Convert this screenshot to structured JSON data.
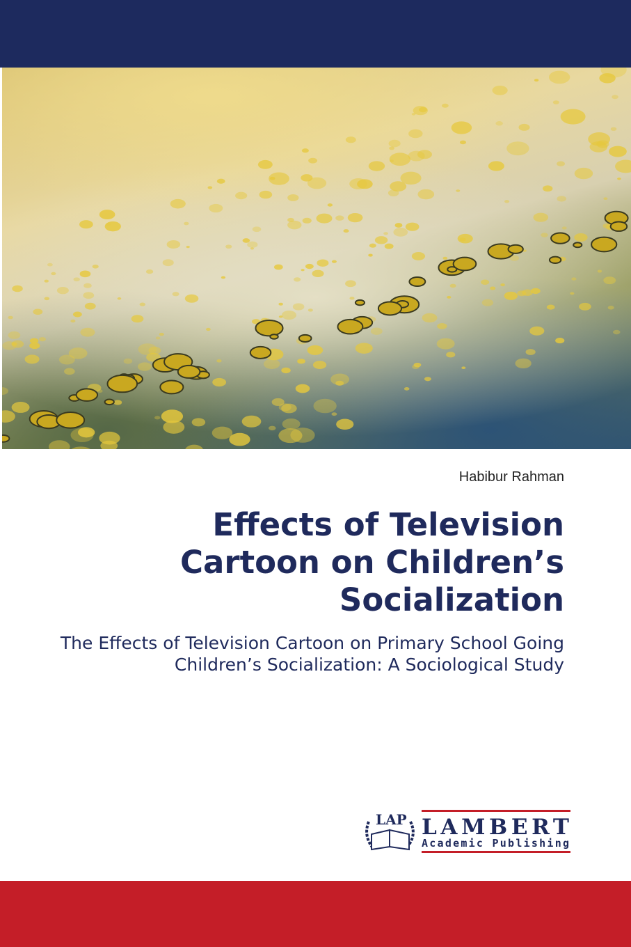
{
  "cover": {
    "author": "Habibur Rahman",
    "title": "Effects of Television Cartoon on Children’s Socialization",
    "subtitle": "The Effects of Television Cartoon on Primary School Going Children’s Socialization: A Sociological Study",
    "publisher": {
      "mark": "LAP",
      "name": "LAMBERT",
      "tagline": "Academic Publishing"
    },
    "colors": {
      "navy": "#1d2a5e",
      "red": "#c41e28",
      "title": "#1f2a5c"
    }
  }
}
